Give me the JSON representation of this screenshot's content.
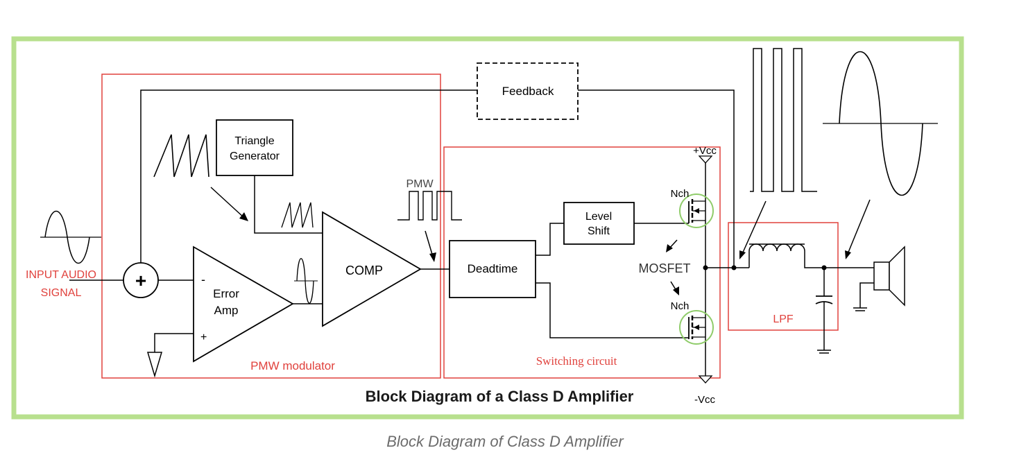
{
  "diagram": {
    "title": "Block Diagram of a Class D Amplifier",
    "input_label_line1": "INPUT AUDIO",
    "input_label_line2": "SIGNAL",
    "sum_symbol": "+",
    "error_amp_line1": "Error",
    "error_amp_line2": "Amp",
    "error_amp_minus": "-",
    "error_amp_plus": "+",
    "triangle_gen_line1": "Triangle",
    "triangle_gen_line2": "Generator",
    "comp": "COMP",
    "pmw_wave_label": "PMW",
    "pmw_modulator": "PMW modulator",
    "feedback": "Feedback",
    "deadtime": "Deadtime",
    "level_shift_line1": "Level",
    "level_shift_line2": "Shift",
    "nch_top": "Nch",
    "nch_bottom": "Nch",
    "mosfet": "MOSFET",
    "vcc_plus": "+Vcc",
    "vcc_minus": "-Vcc",
    "switching_circuit": "Switching circuit",
    "lpf": "LPF"
  },
  "caption": "Block Diagram of Class D Amplifier",
  "colors": {
    "frame": "#b8e08e",
    "region_border": "#e0413c",
    "highlight_circle": "#8fcc6a",
    "line": "#000000",
    "caption_text": "#6b6b6b"
  }
}
